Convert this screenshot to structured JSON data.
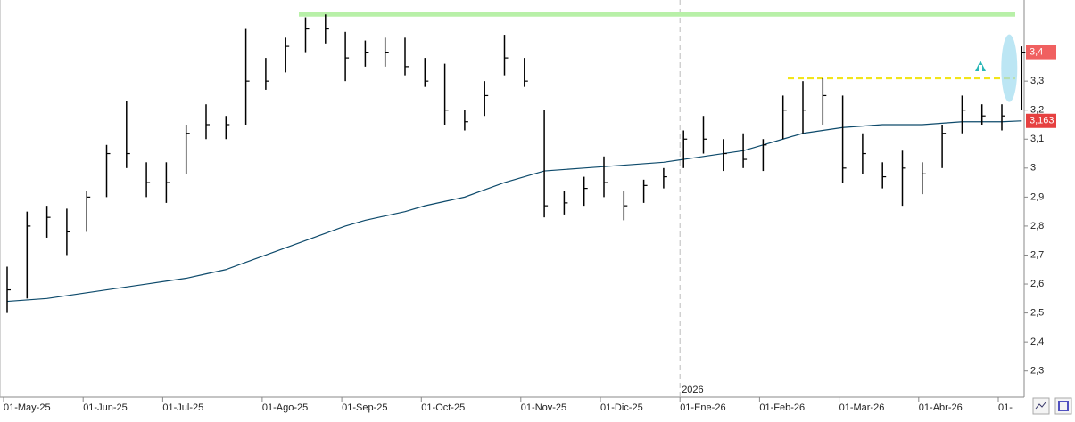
{
  "chart_data": {
    "type": "ohlc",
    "categories": [
      "01-May-25",
      null,
      null,
      null,
      "01-Jun-25",
      null,
      null,
      null,
      "01-Jul-25",
      null,
      null,
      null,
      null,
      "01-Ago-25",
      null,
      null,
      null,
      "01-Sep-25",
      null,
      null,
      null,
      "01-Oct-25",
      null,
      null,
      null,
      null,
      "01-Nov-25",
      null,
      null,
      null,
      "01-Dic-25",
      null,
      null,
      null,
      "01-Ene-26",
      null,
      null,
      null,
      "01-Feb-26",
      null,
      null,
      null,
      "01-Mar-26",
      null,
      null,
      null,
      "01-Abr-26",
      null,
      null,
      null,
      "01-",
      null
    ],
    "high": [
      2.66,
      2.85,
      2.87,
      2.86,
      2.92,
      3.08,
      3.23,
      3.02,
      3.02,
      3.15,
      3.22,
      3.18,
      3.48,
      3.38,
      3.45,
      3.52,
      3.53,
      3.47,
      3.44,
      3.45,
      3.45,
      3.38,
      3.36,
      3.2,
      3.3,
      3.46,
      3.38,
      3.2,
      2.92,
      2.97,
      3.04,
      2.92,
      2.96,
      3.0,
      3.13,
      3.18,
      3.1,
      3.12,
      3.1,
      3.25,
      3.3,
      3.31,
      3.25,
      3.12,
      3.02,
      3.06,
      3.02,
      3.15,
      3.25,
      3.22,
      3.22,
      3.42
    ],
    "low": [
      2.5,
      2.55,
      2.76,
      2.7,
      2.78,
      2.9,
      3.0,
      2.9,
      2.88,
      2.98,
      3.1,
      3.1,
      3.15,
      3.27,
      3.33,
      3.4,
      3.43,
      3.3,
      3.35,
      3.35,
      3.32,
      3.28,
      3.15,
      3.13,
      3.18,
      3.32,
      3.28,
      2.83,
      2.84,
      2.87,
      2.9,
      2.82,
      2.88,
      2.93,
      3.0,
      3.05,
      2.99,
      3.0,
      2.99,
      3.1,
      3.12,
      3.15,
      2.95,
      2.98,
      2.93,
      2.87,
      2.91,
      3.0,
      3.12,
      3.15,
      3.13,
      3.2
    ],
    "close": [
      2.58,
      2.8,
      2.83,
      2.78,
      2.9,
      3.05,
      3.05,
      2.95,
      2.95,
      3.12,
      3.15,
      3.15,
      3.3,
      3.3,
      3.42,
      3.48,
      3.48,
      3.38,
      3.4,
      3.4,
      3.35,
      3.3,
      3.2,
      3.16,
      3.25,
      3.38,
      3.3,
      2.87,
      2.88,
      2.93,
      2.95,
      2.87,
      2.94,
      2.97,
      3.1,
      3.1,
      3.05,
      3.03,
      3.08,
      3.2,
      3.2,
      3.25,
      3.0,
      3.05,
      2.97,
      3.0,
      2.98,
      3.12,
      3.2,
      3.18,
      3.18,
      3.4
    ],
    "bar_color": "#000000",
    "ma": {
      "color": "#0d4a6b",
      "values": [
        2.54,
        2.545,
        2.55,
        2.56,
        2.57,
        2.58,
        2.59,
        2.6,
        2.61,
        2.62,
        2.635,
        2.65,
        2.675,
        2.7,
        2.725,
        2.75,
        2.775,
        2.8,
        2.82,
        2.835,
        2.85,
        2.87,
        2.885,
        2.9,
        2.925,
        2.95,
        2.97,
        2.99,
        2.995,
        3.0,
        3.005,
        3.01,
        3.015,
        3.02,
        3.03,
        3.04,
        3.05,
        3.06,
        3.08,
        3.1,
        3.12,
        3.13,
        3.14,
        3.145,
        3.15,
        3.15,
        3.15,
        3.155,
        3.16,
        3.16,
        3.16,
        3.163
      ]
    },
    "ylim": [
      2.21,
      3.58
    ],
    "yticks": [
      {
        "value": 2.3,
        "label": "2,3"
      },
      {
        "value": 2.4,
        "label": "2,4"
      },
      {
        "value": 2.5,
        "label": "2,5"
      },
      {
        "value": 2.6,
        "label": "2,6"
      },
      {
        "value": 2.7,
        "label": "2,7"
      },
      {
        "value": 2.8,
        "label": "2,8"
      },
      {
        "value": 2.9,
        "label": "2,9"
      },
      3,
      {
        "value": 3.1,
        "label": "3,1"
      },
      {
        "value": 3.2,
        "label": "3,2"
      },
      {
        "value": 3.3,
        "label": "3,3"
      }
    ],
    "price_tags": [
      {
        "value": 3.4,
        "label": "3,4",
        "color": "#f06060"
      },
      {
        "value": 3.163,
        "label": "3,163",
        "color": "#e64040"
      }
    ],
    "hlines": [
      {
        "value": 3.53,
        "color": "#b8f0a8"
      },
      {
        "value": 3.31,
        "color": "#f2e51a",
        "dashed": true
      }
    ],
    "year_marker": {
      "label": "2026",
      "index": 34
    }
  }
}
